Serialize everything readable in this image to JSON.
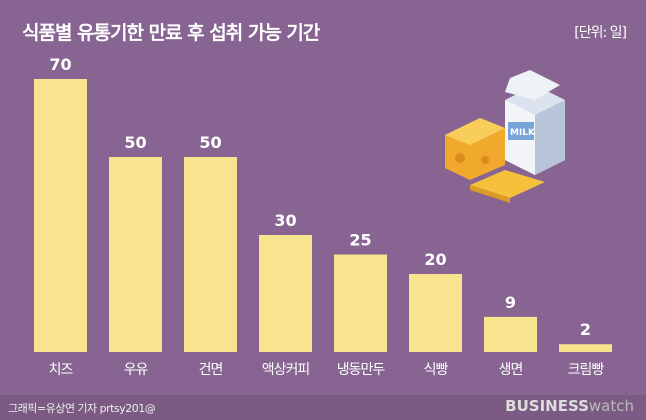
{
  "title": "식품별 유통기한 만료 후 섭취 가능 기간",
  "unit": "[단위: 일]",
  "footer": {
    "credit": "그래픽=유상연 기자 prtsy201@",
    "logo_bold": "BUSINESS",
    "logo_light": "watch"
  },
  "colors": {
    "background": "#876491",
    "bar": "#f8e48e"
  },
  "chart_data": {
    "type": "bar",
    "title": "식품별 유통기한 만료 후 섭취 가능 기간",
    "unit": "[단위: 일]",
    "categories": [
      "치즈",
      "우유",
      "건면",
      "액상커피",
      "냉동만두",
      "식빵",
      "생면",
      "크림빵"
    ],
    "values": [
      70,
      50,
      50,
      30,
      25,
      20,
      9,
      2
    ],
    "ylim": [
      0,
      70
    ],
    "grid": false,
    "legend": "none"
  }
}
